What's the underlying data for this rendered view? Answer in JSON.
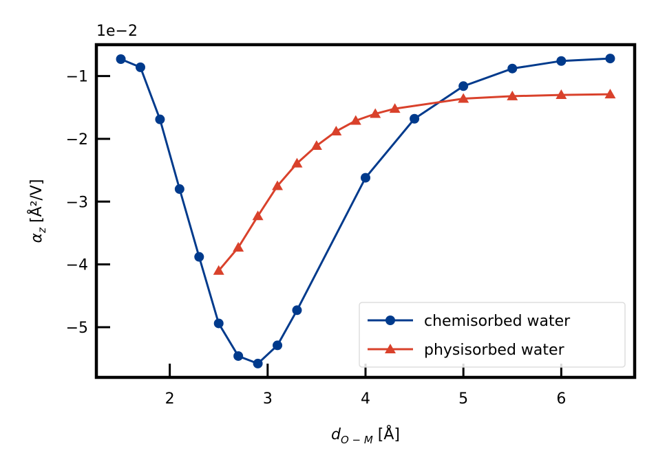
{
  "chart_data": {
    "type": "line",
    "multiplier_label": "1e−2",
    "xlabel_main": "d",
    "xlabel_sub": "O − M",
    "xlabel_unit": " [Å]",
    "ylabel_main": "α",
    "ylabel_sub": "z",
    "ylabel_unit": " [Å²/V]",
    "xlim": [
      1.25,
      6.75
    ],
    "ylim": [
      -5.8,
      -0.5
    ],
    "x_ticks": [
      2,
      3,
      4,
      5,
      6
    ],
    "x_tick_labels": [
      "2",
      "3",
      "4",
      "5",
      "6"
    ],
    "y_ticks": [
      -1,
      -2,
      -3,
      -4,
      -5
    ],
    "y_tick_labels": [
      "−1",
      "−2",
      "−3",
      "−4",
      "−5"
    ],
    "legend_position": "lower right",
    "series": [
      {
        "name": "chemisorbed water",
        "color": "#003a8c",
        "marker": "circle",
        "x": [
          1.5,
          1.7,
          1.9,
          2.1,
          2.3,
          2.5,
          2.7,
          2.9,
          3.1,
          3.3,
          4.0,
          4.5,
          5.0,
          5.5,
          6.0,
          6.5
        ],
        "y": [
          -0.73,
          -0.86,
          -1.69,
          -2.8,
          -3.88,
          -4.94,
          -5.46,
          -5.58,
          -5.29,
          -4.73,
          -2.62,
          -1.68,
          -1.16,
          -0.88,
          -0.76,
          -0.72
        ]
      },
      {
        "name": "physisorbed water",
        "color": "#d9412b",
        "marker": "triangle",
        "x": [
          2.5,
          2.7,
          2.9,
          3.1,
          3.3,
          3.5,
          3.7,
          3.9,
          4.1,
          4.3,
          5.0,
          5.5,
          6.0,
          6.5
        ],
        "y": [
          -4.1,
          -3.73,
          -3.23,
          -2.75,
          -2.39,
          -2.11,
          -1.88,
          -1.71,
          -1.6,
          -1.52,
          -1.36,
          -1.32,
          -1.3,
          -1.29
        ]
      }
    ]
  }
}
